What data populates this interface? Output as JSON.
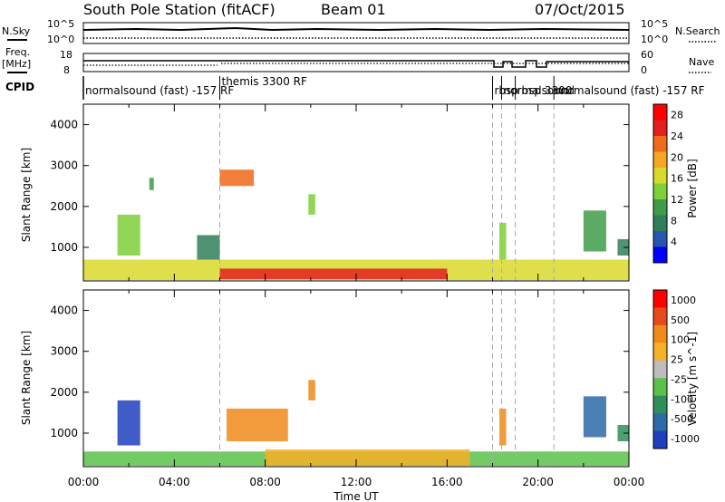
{
  "header": {
    "station": "South Pole Station (fitACF)",
    "beam": "Beam 01",
    "date": "07/Oct/2015"
  },
  "noise_panel": {
    "left_label": "N.Sky",
    "right_label": "N.Search",
    "left_ticks": [
      "10^5",
      "10^0"
    ],
    "right_ticks": [
      "10^5",
      "10^0"
    ]
  },
  "freq_panel": {
    "left_label_line1": "Freq.",
    "left_label_line2": "[MHz]",
    "right_label": "Nave",
    "left_ticks": [
      "18",
      "8"
    ],
    "right_ticks": [
      "60",
      "0"
    ]
  },
  "cpid_panel": {
    "label": "CPID",
    "programs": [
      {
        "name": "normalsound (fast)  -157 RF",
        "start_hour": 0
      },
      {
        "name": "themis 3300 RF",
        "start_hour": 6.0
      },
      {
        "name": "rbsp",
        "start_hour": 18.0
      },
      {
        "name": "normalsound",
        "start_hour": 18.4
      },
      {
        "name": "rbsp 3300",
        "start_hour": 19.0
      },
      {
        "name": "normalsound (fast) -157 RF",
        "start_hour": 20.7
      }
    ],
    "cpid_text_tail": "normalsound (fast) -157 RF"
  },
  "colors": {
    "power_scale": [
      "#0000ff",
      "#2855b0",
      "#2f7f5a",
      "#3f9c4a",
      "#7ecf3a",
      "#d9d92b",
      "#f5a623",
      "#f06a1a",
      "#e22020",
      "#ff0000"
    ],
    "velocity_scale": [
      "#1f3fbf",
      "#2d6aa8",
      "#2f8f5a",
      "#5ac24a",
      "#bdbdbd",
      "#f5b027",
      "#f08a1a",
      "#e64a1a",
      "#ff0000"
    ]
  },
  "chart_data": [
    {
      "type": "heatmap",
      "name": "power",
      "ylabel": "Slant Range [km]",
      "xlabel": "",
      "xlim_hours": [
        0,
        24
      ],
      "ylim": [
        180,
        4500
      ],
      "y_ticks": [
        1000,
        2000,
        3000,
        4000
      ],
      "colorbar_label": "Power [dB]",
      "colorbar_ticks": [
        4,
        8,
        12,
        16,
        20,
        24,
        28
      ],
      "colorbar_range": [
        0,
        30
      ],
      "patches": [
        {
          "t0": 0.0,
          "t1": 24.0,
          "r0": 200,
          "r1": 700,
          "v": 18
        },
        {
          "t0": 6.0,
          "t1": 16.0,
          "r0": 220,
          "r1": 480,
          "v": 27
        },
        {
          "t0": 1.5,
          "t1": 2.5,
          "r0": 800,
          "r1": 1800,
          "v": 12
        },
        {
          "t0": 2.9,
          "t1": 3.1,
          "r0": 2400,
          "r1": 2700,
          "v": 10
        },
        {
          "t0": 5.0,
          "t1": 6.0,
          "r0": 700,
          "r1": 1300,
          "v": 8
        },
        {
          "t0": 6.0,
          "t1": 7.5,
          "r0": 2500,
          "r1": 2900,
          "v": 22
        },
        {
          "t0": 9.9,
          "t1": 10.2,
          "r0": 1800,
          "r1": 2300,
          "v": 14
        },
        {
          "t0": 18.3,
          "t1": 18.6,
          "r0": 700,
          "r1": 1600,
          "v": 12
        },
        {
          "t0": 22.0,
          "t1": 23.0,
          "r0": 900,
          "r1": 1900,
          "v": 10
        },
        {
          "t0": 23.5,
          "t1": 24.0,
          "r0": 800,
          "r1": 1200,
          "v": 8
        }
      ]
    },
    {
      "type": "heatmap",
      "name": "velocity",
      "ylabel": "Slant Range [km]",
      "xlabel": "Time UT",
      "xlim_hours": [
        0,
        24
      ],
      "ylim": [
        180,
        4500
      ],
      "y_ticks": [
        1000,
        2000,
        3000,
        4000
      ],
      "x_tick_labels": [
        "00:00",
        "04:00",
        "08:00",
        "12:00",
        "16:00",
        "20:00",
        "00:00"
      ],
      "x_tick_hours": [
        0,
        4,
        8,
        12,
        16,
        20,
        24
      ],
      "colorbar_label": "Velocity [m s^-1]",
      "colorbar_ticks": [
        "1000",
        "500",
        "100",
        "25",
        "-25",
        "-100",
        "-500",
        "-1000"
      ],
      "patches": [
        {
          "t0": 0.0,
          "t1": 24.0,
          "r0": 200,
          "r1": 550,
          "v": 3
        },
        {
          "t0": 8.0,
          "t1": 17.0,
          "r0": 200,
          "r1": 600,
          "v": 5
        },
        {
          "t0": 1.5,
          "t1": 2.5,
          "r0": 700,
          "r1": 1800,
          "v": 0
        },
        {
          "t0": 6.3,
          "t1": 9.0,
          "r0": 800,
          "r1": 1600,
          "v": 6
        },
        {
          "t0": 9.9,
          "t1": 10.2,
          "r0": 1800,
          "r1": 2300,
          "v": 6
        },
        {
          "t0": 18.3,
          "t1": 18.6,
          "r0": 700,
          "r1": 1600,
          "v": 6
        },
        {
          "t0": 22.0,
          "t1": 23.0,
          "r0": 900,
          "r1": 1900,
          "v": 1
        },
        {
          "t0": 23.5,
          "t1": 24.0,
          "r0": 800,
          "r1": 1200,
          "v": 2
        }
      ]
    }
  ]
}
